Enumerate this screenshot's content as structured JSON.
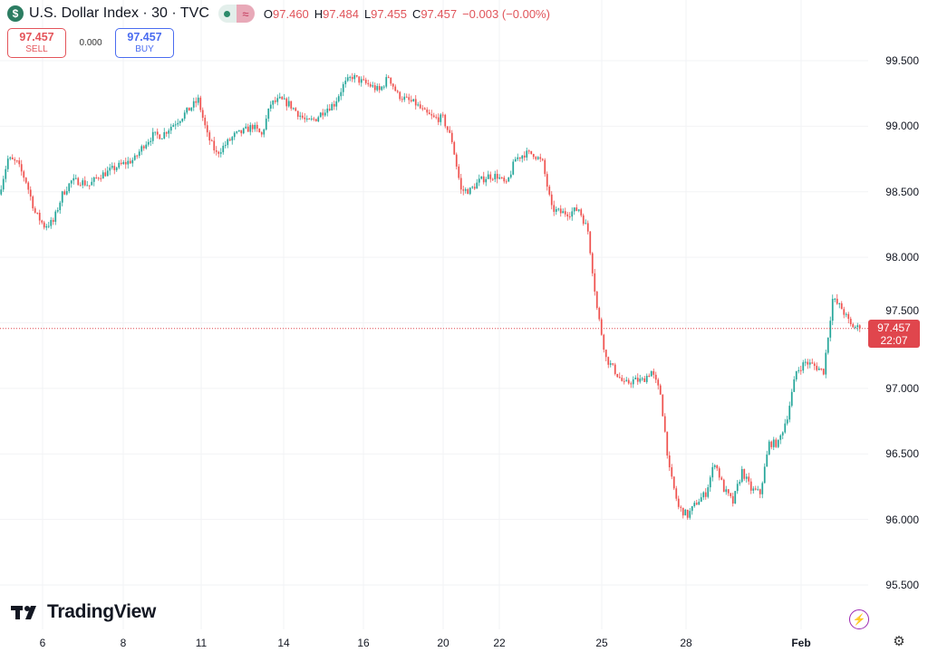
{
  "header": {
    "symbol_icon": "dollar-icon",
    "symbol_glyph": "$",
    "title": "U.S. Dollar Index · 30 · TVC",
    "status_icon": "market-open-dot-icon",
    "wave_glyph": "≈",
    "ohlc": [
      {
        "key": "O",
        "value": "97.460"
      },
      {
        "key": "H",
        "value": "97.484"
      },
      {
        "key": "L",
        "value": "97.455"
      },
      {
        "key": "C",
        "value": "97.457"
      }
    ],
    "change": "−0.003 (−0.00%)"
  },
  "trade": {
    "sell_price": "97.457",
    "sell_label": "SELL",
    "spread": "0.000",
    "buy_price": "97.457",
    "buy_label": "BUY"
  },
  "last_price": {
    "value": "97.457",
    "countdown": "22:07"
  },
  "branding": {
    "name": "TradingView",
    "logo_glyph": "17"
  },
  "icons": {
    "bolt": "⚡",
    "settings": "⚙"
  },
  "colors": {
    "up": "#26a69a",
    "down": "#ef5350",
    "last_price": "#e0464d"
  },
  "chart_data": {
    "type": "candlestick",
    "interval": "30",
    "y_ticks": [
      "99.500",
      "99.000",
      "98.500",
      "98.000",
      "97.500",
      "97.000",
      "96.500",
      "96.000",
      "95.500"
    ],
    "ylim": [
      95.45,
      99.65
    ],
    "x_ticks": [
      "6",
      "8",
      "11",
      "14",
      "16",
      "20",
      "22",
      "25",
      "28",
      "Feb"
    ],
    "approx_closes": [
      98.48,
      98.75,
      98.72,
      98.58,
      98.34,
      98.24,
      98.27,
      98.48,
      98.58,
      98.58,
      98.55,
      98.62,
      98.65,
      98.69,
      98.72,
      98.75,
      98.86,
      98.93,
      98.93,
      99.0,
      99.06,
      99.13,
      99.2,
      98.93,
      98.79,
      98.86,
      98.93,
      98.96,
      99.0,
      98.93,
      99.17,
      99.2,
      99.17,
      99.1,
      99.03,
      99.06,
      99.13,
      99.17,
      99.31,
      99.38,
      99.34,
      99.31,
      99.27,
      99.38,
      99.24,
      99.2,
      99.17,
      99.1,
      99.06,
      99.06,
      98.89,
      98.51,
      98.51,
      98.58,
      98.62,
      98.62,
      98.55,
      98.75,
      98.79,
      98.79,
      98.72,
      98.37,
      98.34,
      98.34,
      98.37,
      98.2,
      97.61,
      97.23,
      97.13,
      97.03,
      97.06,
      97.06,
      97.13,
      96.96,
      96.37,
      96.09,
      96.03,
      96.13,
      96.2,
      96.44,
      96.23,
      96.13,
      96.37,
      96.23,
      96.2,
      96.58,
      96.58,
      96.79,
      97.13,
      97.2,
      97.17,
      97.13,
      97.68,
      97.61,
      97.48,
      97.457
    ],
    "last": 97.457
  }
}
